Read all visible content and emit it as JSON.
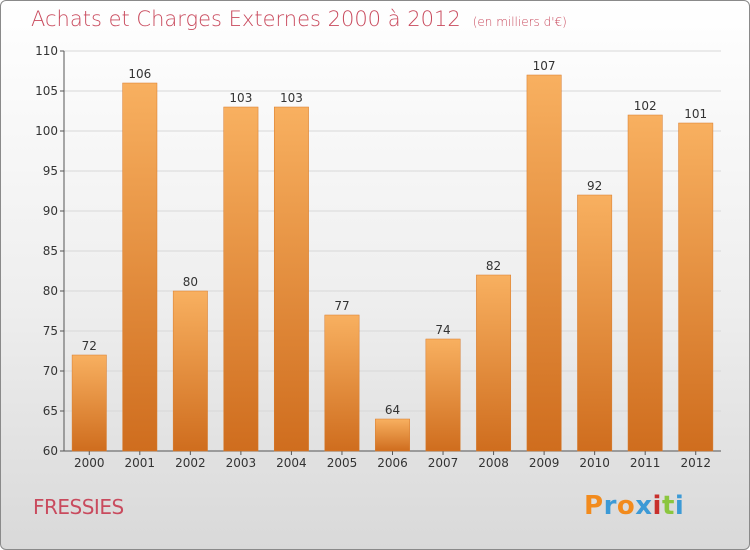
{
  "header": {
    "title": "Achats et Charges Externes 2000 à 2012",
    "subtitle": "(en milliers d'€)"
  },
  "footer": {
    "commune": "FRESSIES",
    "logo": "Proxiti"
  },
  "colors": {
    "bar_light": "#f8b060",
    "bar_dark": "#cf6d1e",
    "title": "#c94b5e",
    "logo_letters": [
      "#f28b1d",
      "#3c9ad6",
      "#f28b1d",
      "#3c9ad6",
      "#c8302c",
      "#8bc63f",
      "#3c9ad6"
    ]
  },
  "chart_data": {
    "type": "bar",
    "categories": [
      "2000",
      "2001",
      "2002",
      "2003",
      "2004",
      "2005",
      "2006",
      "2007",
      "2008",
      "2009",
      "2010",
      "2011",
      "2012"
    ],
    "values": [
      72,
      106,
      80,
      103,
      103,
      77,
      64,
      74,
      82,
      107,
      92,
      102,
      101
    ],
    "ylim": [
      60,
      110
    ],
    "yticks": [
      60,
      65,
      70,
      75,
      80,
      85,
      90,
      95,
      100,
      105,
      110
    ],
    "grid": true,
    "legend": "none"
  }
}
